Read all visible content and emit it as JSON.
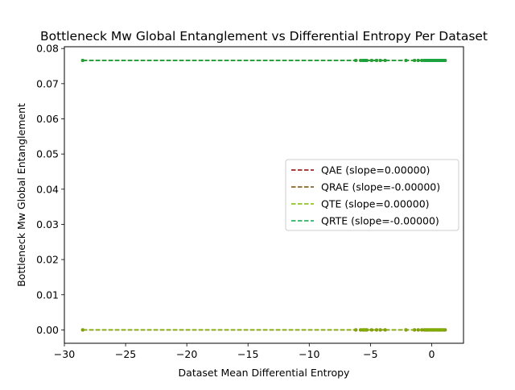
{
  "chart_data": {
    "type": "scatter",
    "title": "Bottleneck Mw Global Entanglement vs Differential Entropy Per Dataset",
    "xlabel": "Dataset Mean Differential Entropy",
    "ylabel": "Bottleneck Mw Global Entanglement",
    "xlim": [
      -30,
      2.6
    ],
    "ylim": [
      -0.0038,
      0.0805
    ],
    "xticks": [
      -30,
      -25,
      -20,
      -15,
      -10,
      -5,
      0
    ],
    "xtick_labels": [
      "−30",
      "−25",
      "−20",
      "−15",
      "−10",
      "−5",
      "0"
    ],
    "yticks": [
      0.0,
      0.01,
      0.02,
      0.03,
      0.04,
      0.05,
      0.06,
      0.07,
      0.08
    ],
    "ytick_labels": [
      "0.00",
      "0.01",
      "0.02",
      "0.03",
      "0.04",
      "0.05",
      "0.06",
      "0.07",
      "0.08"
    ],
    "grid": false,
    "legend_position": "center-right",
    "x_points": [
      -28.5,
      -6.2,
      -5.8,
      -5.6,
      -5.5,
      -5.4,
      -5.3,
      -4.9,
      -4.5,
      -4.2,
      -3.8,
      -2.1,
      -1.4,
      -1.1,
      -0.8,
      -0.6,
      -0.5,
      -0.4,
      -0.3,
      -0.2,
      -0.1,
      0.0,
      0.1,
      0.2,
      0.3,
      0.4,
      0.5,
      0.6,
      0.7,
      0.8,
      0.9,
      1.0,
      1.1
    ],
    "series": [
      {
        "name": "QAE (slope=0.00000)",
        "color": "#8b0000",
        "y_levels": [
          0.0,
          0.0766
        ]
      },
      {
        "name": "QRAE (slope=-0.00000)",
        "color": "#7a4a00",
        "y_levels": [
          0.0,
          0.0766
        ]
      },
      {
        "name": "QTE (slope=0.00000)",
        "color": "#7fb800",
        "y_levels": [
          0.0,
          0.0766
        ]
      },
      {
        "name": "QRTE (slope=-0.00000)",
        "color": "#0aa84a",
        "y_levels": [
          0.0766
        ]
      }
    ],
    "line_x_range": [
      -28.5,
      1.1
    ]
  }
}
